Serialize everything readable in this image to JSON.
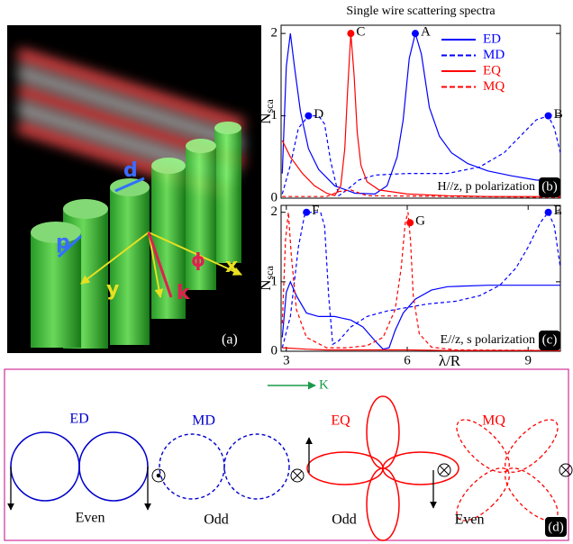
{
  "panel_a": {
    "label": "(a)",
    "labels": [
      "d",
      "p",
      "x",
      "y",
      "k",
      "ϕ"
    ]
  },
  "chart_data": [
    {
      "type": "line",
      "title": "Single wire scattering spectra",
      "ylabel": "N",
      "ylabel_subscript": "sca",
      "xlim": [
        2.87,
        9.8
      ],
      "ylim": [
        0,
        2.1
      ],
      "yticks": [
        0,
        1,
        2
      ],
      "annotation": "H//z, p polarization",
      "panel_label": "(b)",
      "legend": "upper right",
      "series": [
        {
          "name": "ED",
          "color": "#0000ff",
          "linestyle": "solid",
          "x": [
            2.9,
            3.0,
            3.1,
            3.2,
            3.35,
            3.55,
            3.8,
            4.2,
            4.7,
            5.2,
            5.5,
            5.75,
            5.9,
            6.05,
            6.2,
            6.35,
            6.55,
            6.8,
            7.1,
            7.5,
            8,
            8.6,
            9.2,
            9.8
          ],
          "values": [
            0.3,
            1.6,
            2.0,
            1.6,
            1.05,
            0.6,
            0.35,
            0.15,
            0.06,
            0.05,
            0.15,
            0.5,
            0.95,
            1.7,
            2.0,
            1.75,
            1.1,
            0.75,
            0.55,
            0.42,
            0.33,
            0.27,
            0.22,
            0.2
          ]
        },
        {
          "name": "MD",
          "color": "#0000ff",
          "linestyle": "dashed",
          "x": [
            2.9,
            3.1,
            3.3,
            3.55,
            3.8,
            3.95,
            4.1,
            4.3,
            4.5,
            4.8,
            5.2,
            6.0,
            7.0,
            7.8,
            8.4,
            8.9,
            9.2,
            9.5,
            9.65,
            9.8
          ],
          "values": [
            0.05,
            0.4,
            0.85,
            1.0,
            1.0,
            0.9,
            0.45,
            0.03,
            0.1,
            0.22,
            0.28,
            0.3,
            0.3,
            0.38,
            0.55,
            0.8,
            0.95,
            1.0,
            0.85,
            0.55
          ]
        },
        {
          "name": "EQ",
          "color": "#ff0000",
          "linestyle": "solid",
          "x": [
            2.9,
            3.1,
            3.4,
            3.7,
            4.0,
            4.2,
            4.35,
            4.45,
            4.52,
            4.6,
            4.68,
            4.76,
            4.85,
            5.0,
            5.3,
            6,
            7,
            8,
            9,
            9.8
          ],
          "values": [
            0.7,
            0.5,
            0.3,
            0.15,
            0.06,
            0.03,
            0.15,
            0.6,
            1.3,
            2.0,
            1.5,
            0.8,
            0.4,
            0.2,
            0.1,
            0.05,
            0.03,
            0.02,
            0.02,
            0.02
          ]
        },
        {
          "name": "MQ",
          "color": "#ff0000",
          "linestyle": "dashed",
          "x": [
            2.9,
            4.0,
            4.3,
            4.6,
            5.0,
            9.8
          ],
          "values": [
            0.02,
            0.02,
            0.08,
            0.1,
            0.03,
            0.01
          ]
        }
      ],
      "markers": [
        {
          "label": "D",
          "x": 3.55,
          "y": 1,
          "color": "#0000ff"
        },
        {
          "label": "C",
          "x": 4.6,
          "y": 2,
          "color": "#ff0000"
        },
        {
          "label": "A",
          "x": 6.2,
          "y": 2,
          "color": "#0000ff"
        },
        {
          "label": "B",
          "x": 9.5,
          "y": 1,
          "color": "#0000ff"
        }
      ]
    },
    {
      "type": "line",
      "ylabel": "N",
      "ylabel_subscript": "sca",
      "xlabel": "λ/R",
      "xlim": [
        2.87,
        9.8
      ],
      "ylim": [
        0,
        2.1
      ],
      "xticks": [
        3,
        6,
        9
      ],
      "yticks": [
        0,
        1,
        2
      ],
      "annotation": "E//z, s polarization",
      "panel_label": "(c)",
      "series": [
        {
          "color": "#0000ff",
          "linestyle": "solid",
          "x": [
            2.9,
            3.0,
            3.1,
            3.25,
            3.5,
            3.8,
            4.2,
            4.6,
            4.9,
            5.2,
            5.4,
            5.55,
            5.7,
            5.9,
            6.2,
            6.6,
            7,
            8,
            9,
            9.8
          ],
          "values": [
            0.2,
            0.85,
            1.0,
            0.8,
            0.55,
            0.5,
            0.5,
            0.45,
            0.35,
            0.15,
            0.03,
            0.05,
            0.3,
            0.55,
            0.75,
            0.88,
            0.93,
            0.95,
            0.95,
            0.95
          ]
        },
        {
          "color": "#0000ff",
          "linestyle": "dashed",
          "x": [
            2.9,
            3.1,
            3.3,
            3.45,
            3.6,
            3.85,
            3.95,
            4.05,
            4.15,
            4.3,
            4.6,
            5.0,
            5.5,
            6.0,
            6.5,
            7.2,
            7.8,
            8.3,
            8.7,
            9.0,
            9.3,
            9.5,
            9.65,
            9.8
          ],
          "values": [
            0.05,
            0.5,
            1.5,
            1.95,
            2.0,
            2.0,
            1.8,
            0.8,
            0.1,
            0.15,
            0.35,
            0.5,
            0.58,
            0.63,
            0.68,
            0.72,
            0.8,
            0.95,
            1.2,
            1.5,
            1.85,
            2.0,
            1.8,
            1.2
          ]
        },
        {
          "color": "#ff0000",
          "linestyle": "solid",
          "x": [
            2.9,
            3.5,
            4.0,
            4.5,
            5,
            6,
            7,
            8,
            9.8
          ],
          "values": [
            0.05,
            0.03,
            0.02,
            0.02,
            0.02,
            0.02,
            0.01,
            0.01,
            0.01
          ]
        },
        {
          "color": "#ff0000",
          "linestyle": "dashed",
          "x": [
            2.9,
            2.98,
            3.05,
            3.12,
            3.25,
            3.5,
            4.0,
            4.5,
            5.0,
            5.4,
            5.7,
            5.85,
            5.95,
            6.02,
            6.08,
            6.15,
            6.3,
            6.6,
            7.2,
            9.8
          ],
          "values": [
            0.4,
            1.6,
            2.0,
            1.4,
            0.6,
            0.2,
            0.05,
            0.05,
            0.08,
            0.2,
            0.6,
            1.2,
            1.85,
            2.0,
            1.6,
            0.8,
            0.25,
            0.06,
            0.02,
            0.01
          ]
        }
      ],
      "markers": [
        {
          "label": "F",
          "x": 3.5,
          "y": 2,
          "color": "#0000ff"
        },
        {
          "label": "G",
          "x": 6.07,
          "y": 1.85,
          "color": "#ff0000"
        },
        {
          "label": "E",
          "x": 9.5,
          "y": 2,
          "color": "#0000ff"
        }
      ]
    }
  ],
  "panel_d": {
    "wave_vector": "K",
    "modes": [
      "ED",
      "MD",
      "EQ",
      "MQ"
    ],
    "parities": [
      "Even",
      "Odd",
      "Odd",
      "Even"
    ],
    "label": "(d)"
  }
}
